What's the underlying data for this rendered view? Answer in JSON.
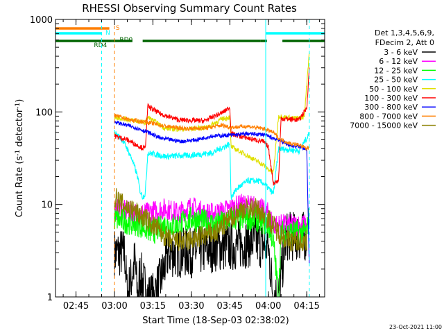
{
  "chart_data": {
    "type": "line",
    "title": "RHESSI Observing Summary Count Rates",
    "xlabel": "Start Time (18-Sep-03 02:38:02)",
    "ylabel": "Count Rate (s",
    "ylabel_sup1": "-1",
    "ylabel_mid": " detector",
    "ylabel_sup2": "-1",
    "ylabel_end": ")",
    "y_scale": "log",
    "ylim": [
      1,
      1000
    ],
    "xlim_minutes": [
      -23,
      82
    ],
    "x_ticks": [
      {
        "label": "02:45",
        "min": -15
      },
      {
        "label": "03:00",
        "min": 0
      },
      {
        "label": "03:15",
        "min": 15
      },
      {
        "label": "03:30",
        "min": 30
      },
      {
        "label": "03:45",
        "min": 45
      },
      {
        "label": "04:00",
        "min": 60
      },
      {
        "label": "04:15",
        "min": 75
      }
    ],
    "y_ticks": [
      {
        "label": "1",
        "v": 1
      },
      {
        "label": "10",
        "v": 10
      },
      {
        "label": "100",
        "v": 100
      },
      {
        "label": "1000",
        "v": 1000
      }
    ],
    "legend_header": [
      "Det 1,3,4,5,6,9,",
      "FDecim 2, Att 0"
    ],
    "legend_placement": "right",
    "date_stamp": "23-Oct-2021 11:00",
    "flags": [
      {
        "label": "S",
        "color": "#ff7f00",
        "segments": [
          [
            -23,
            -2
          ]
        ]
      },
      {
        "label": "N",
        "color": "#00ffff",
        "segments": [
          [
            -23,
            -5
          ],
          [
            59,
            82
          ]
        ]
      },
      {
        "label": "RD0",
        "color": "#006400",
        "segments": [
          [
            -1,
            7
          ],
          [
            11,
            46
          ],
          [
            57,
            59.5
          ],
          [
            65.5,
            82
          ]
        ]
      },
      {
        "label": "RD4",
        "color": "#006400",
        "segments": [
          [
            -23,
            -1
          ],
          [
            46,
            57
          ]
        ]
      }
    ],
    "vlines": [
      {
        "min": -23,
        "color": "#00ffff",
        "style": "solid"
      },
      {
        "min": -5,
        "color": "#00ffff",
        "style": "dash"
      },
      {
        "min": 0,
        "color": "#ff7f00",
        "style": "dash"
      },
      {
        "min": 59,
        "color": "#00ffff",
        "style": "solid"
      },
      {
        "min": 76,
        "color": "#00ffff",
        "style": "dash"
      }
    ],
    "series": [
      {
        "name": "3 - 6 keV",
        "color": "#000000",
        "noise": 0.5,
        "points": [
          [
            0,
            3
          ],
          [
            4,
            3
          ],
          [
            5,
            1
          ],
          [
            7,
            1.8
          ],
          [
            8,
            2.5
          ],
          [
            9,
            1
          ],
          [
            10,
            1.8
          ],
          [
            13,
            1
          ],
          [
            15,
            1
          ],
          [
            18,
            1.5
          ],
          [
            21,
            3
          ],
          [
            26,
            3
          ],
          [
            30,
            3
          ],
          [
            40,
            3.5
          ],
          [
            45,
            3.5
          ],
          [
            55,
            4
          ],
          [
            60,
            3.5
          ],
          [
            62,
            1
          ],
          [
            64,
            1
          ],
          [
            67,
            4.5
          ],
          [
            75,
            4.5
          ]
        ]
      },
      {
        "name": "6 - 12 keV",
        "color": "#ff00ff",
        "noise": 0.22,
        "points": [
          [
            0,
            9
          ],
          [
            8,
            8
          ],
          [
            12,
            8
          ],
          [
            20,
            9
          ],
          [
            25,
            8
          ],
          [
            30,
            9.5
          ],
          [
            35,
            8
          ],
          [
            40,
            8
          ],
          [
            45,
            9
          ],
          [
            50,
            10
          ],
          [
            55,
            9.5
          ],
          [
            60,
            8
          ],
          [
            62,
            6
          ],
          [
            65,
            6
          ],
          [
            70,
            6
          ],
          [
            75,
            6
          ]
        ]
      },
      {
        "name": "12 - 25 keV",
        "color": "#00ff00",
        "noise": 0.25,
        "points": [
          [
            0,
            7
          ],
          [
            10,
            6
          ],
          [
            15,
            5
          ],
          [
            20,
            6
          ],
          [
            25,
            6
          ],
          [
            30,
            7
          ],
          [
            35,
            6.5
          ],
          [
            40,
            6
          ],
          [
            45,
            7
          ],
          [
            50,
            7
          ],
          [
            55,
            7
          ],
          [
            60,
            6
          ],
          [
            62,
            4
          ],
          [
            64,
            1
          ],
          [
            65,
            5
          ],
          [
            70,
            5
          ],
          [
            75,
            5
          ],
          [
            76,
            8
          ]
        ]
      },
      {
        "name": "25 - 50 keV",
        "color": "#00ffff",
        "noise": 0.06,
        "points": [
          [
            0,
            60
          ],
          [
            3,
            50
          ],
          [
            5,
            40
          ],
          [
            7,
            30
          ],
          [
            9,
            20
          ],
          [
            10,
            14
          ],
          [
            11,
            12
          ],
          [
            12,
            13
          ],
          [
            13,
            36
          ],
          [
            20,
            33
          ],
          [
            30,
            34
          ],
          [
            38,
            36
          ],
          [
            45,
            45
          ],
          [
            45.5,
            12
          ],
          [
            48,
            15
          ],
          [
            52,
            18
          ],
          [
            56,
            18
          ],
          [
            58,
            17
          ],
          [
            60,
            15
          ],
          [
            62,
            13
          ],
          [
            64,
            40
          ],
          [
            68,
            39
          ],
          [
            72,
            38
          ],
          [
            76,
            58
          ]
        ]
      },
      {
        "name": "50 - 100 keV",
        "color": "#e0e000",
        "noise": 0.05,
        "points": [
          [
            0,
            88
          ],
          [
            6,
            82
          ],
          [
            12,
            76
          ],
          [
            13,
            88
          ],
          [
            20,
            66
          ],
          [
            28,
            65
          ],
          [
            36,
            68
          ],
          [
            42,
            84
          ],
          [
            45,
            88
          ],
          [
            45.5,
            42
          ],
          [
            50,
            36
          ],
          [
            55,
            30
          ],
          [
            58,
            27
          ],
          [
            60,
            24
          ],
          [
            62,
            22
          ],
          [
            64,
            90
          ],
          [
            70,
            85
          ],
          [
            74,
            88
          ],
          [
            76,
            450
          ]
        ]
      },
      {
        "name": "100 - 300 keV",
        "color": "#ff0000",
        "noise": 0.05,
        "points": [
          [
            0,
            55
          ],
          [
            5,
            50
          ],
          [
            10,
            42
          ],
          [
            12,
            40
          ],
          [
            13,
            115
          ],
          [
            18,
            95
          ],
          [
            25,
            82
          ],
          [
            35,
            80
          ],
          [
            42,
            98
          ],
          [
            45,
            112
          ],
          [
            45.5,
            58
          ],
          [
            52,
            52
          ],
          [
            58,
            48
          ],
          [
            60,
            42
          ],
          [
            62,
            17
          ],
          [
            64,
            18
          ],
          [
            65,
            85
          ],
          [
            72,
            82
          ],
          [
            75,
            110
          ],
          [
            76,
            300
          ]
        ]
      },
      {
        "name": "300 - 800 keV",
        "color": "#0000ff",
        "noise": 0.04,
        "points": [
          [
            0,
            78
          ],
          [
            8,
            68
          ],
          [
            12,
            62
          ],
          [
            18,
            52
          ],
          [
            26,
            48
          ],
          [
            32,
            50
          ],
          [
            38,
            55
          ],
          [
            45,
            56
          ],
          [
            52,
            58
          ],
          [
            58,
            57
          ],
          [
            62,
            52
          ],
          [
            64,
            50
          ],
          [
            68,
            44
          ],
          [
            72,
            42
          ],
          [
            75,
            40
          ],
          [
            76,
            2
          ]
        ]
      },
      {
        "name": "800 - 7000 keV",
        "color": "#ff7f00",
        "noise": 0.04,
        "points": [
          [
            0,
            92
          ],
          [
            6,
            82
          ],
          [
            12,
            78
          ],
          [
            20,
            70
          ],
          [
            28,
            66
          ],
          [
            36,
            67
          ],
          [
            42,
            72
          ],
          [
            45,
            68
          ],
          [
            52,
            70
          ],
          [
            58,
            66
          ],
          [
            62,
            60
          ],
          [
            64,
            52
          ],
          [
            68,
            46
          ],
          [
            72,
            44
          ],
          [
            75,
            40
          ],
          [
            76,
            42
          ]
        ]
      },
      {
        "name": "7000 - 15000 keV",
        "color": "#8b8000",
        "noise": 0.22,
        "points": [
          [
            0,
            12
          ],
          [
            3,
            10
          ],
          [
            6,
            9
          ],
          [
            9,
            8
          ],
          [
            12,
            7
          ],
          [
            15,
            6
          ],
          [
            18,
            5
          ],
          [
            22,
            4
          ],
          [
            28,
            4
          ],
          [
            34,
            4.5
          ],
          [
            40,
            5
          ],
          [
            45,
            7
          ],
          [
            50,
            9
          ],
          [
            55,
            9
          ],
          [
            60,
            7
          ],
          [
            64,
            5
          ],
          [
            68,
            4
          ],
          [
            72,
            4
          ],
          [
            75,
            4
          ]
        ]
      }
    ]
  }
}
